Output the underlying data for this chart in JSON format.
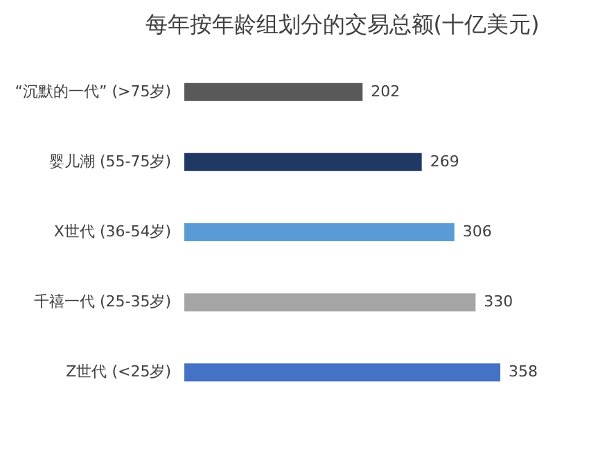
{
  "chart_data": {
    "type": "bar",
    "orientation": "horizontal",
    "title": "每年按年龄组划分的交易总额(十亿美元)",
    "categories": [
      "“沉默的一代” (>75岁)",
      "婴儿潮 (55-75岁)",
      "X世代 (36-54岁)",
      "千禧一代 (25-35岁)",
      "Z世代 (<25岁)"
    ],
    "values": [
      202,
      269,
      306,
      330,
      358
    ],
    "colors": [
      "#595959",
      "#203864",
      "#5b9bd5",
      "#a5a5a5",
      "#4472c4"
    ],
    "data_labels": true
  }
}
